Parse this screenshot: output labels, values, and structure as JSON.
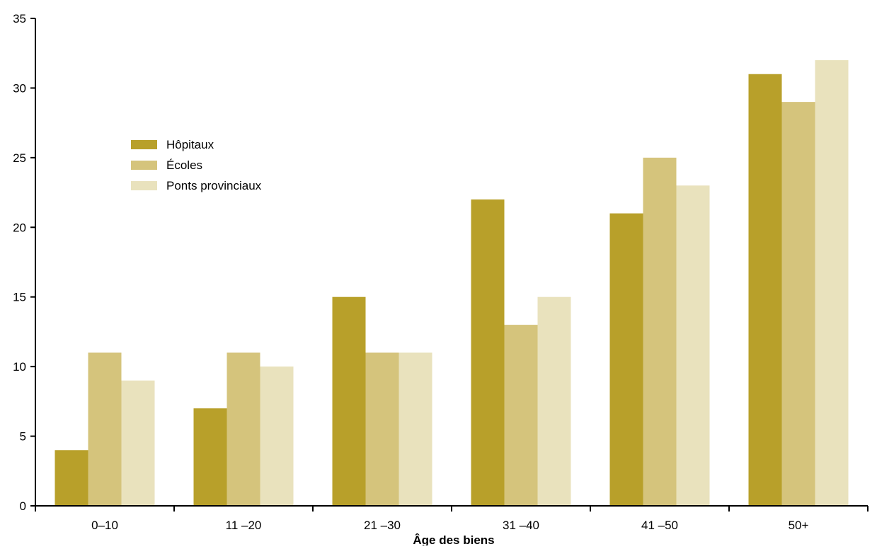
{
  "chart_data": {
    "type": "bar",
    "categories": [
      "0–10",
      "11 –20",
      "21 –30",
      "31 –40",
      "41 –50",
      "50+"
    ],
    "series": [
      {
        "name": "Hôpitaux",
        "values": [
          4,
          7,
          15,
          22,
          21,
          31
        ],
        "color": "#b8a02a"
      },
      {
        "name": "Écoles",
        "values": [
          11,
          11,
          11,
          13,
          25,
          29
        ],
        "color": "#d5c47c"
      },
      {
        "name": "Ponts provinciaux",
        "values": [
          9,
          10,
          11,
          15,
          23,
          32
        ],
        "color": "#e9e2bd"
      }
    ],
    "title": "",
    "xlabel": "Âge des biens",
    "ylabel": "",
    "ylim": [
      0,
      35
    ],
    "yticks": [
      "0",
      "5",
      "10",
      "15",
      "20",
      "25",
      "30",
      "35"
    ],
    "grid": false,
    "legend_position": "upper-left"
  }
}
